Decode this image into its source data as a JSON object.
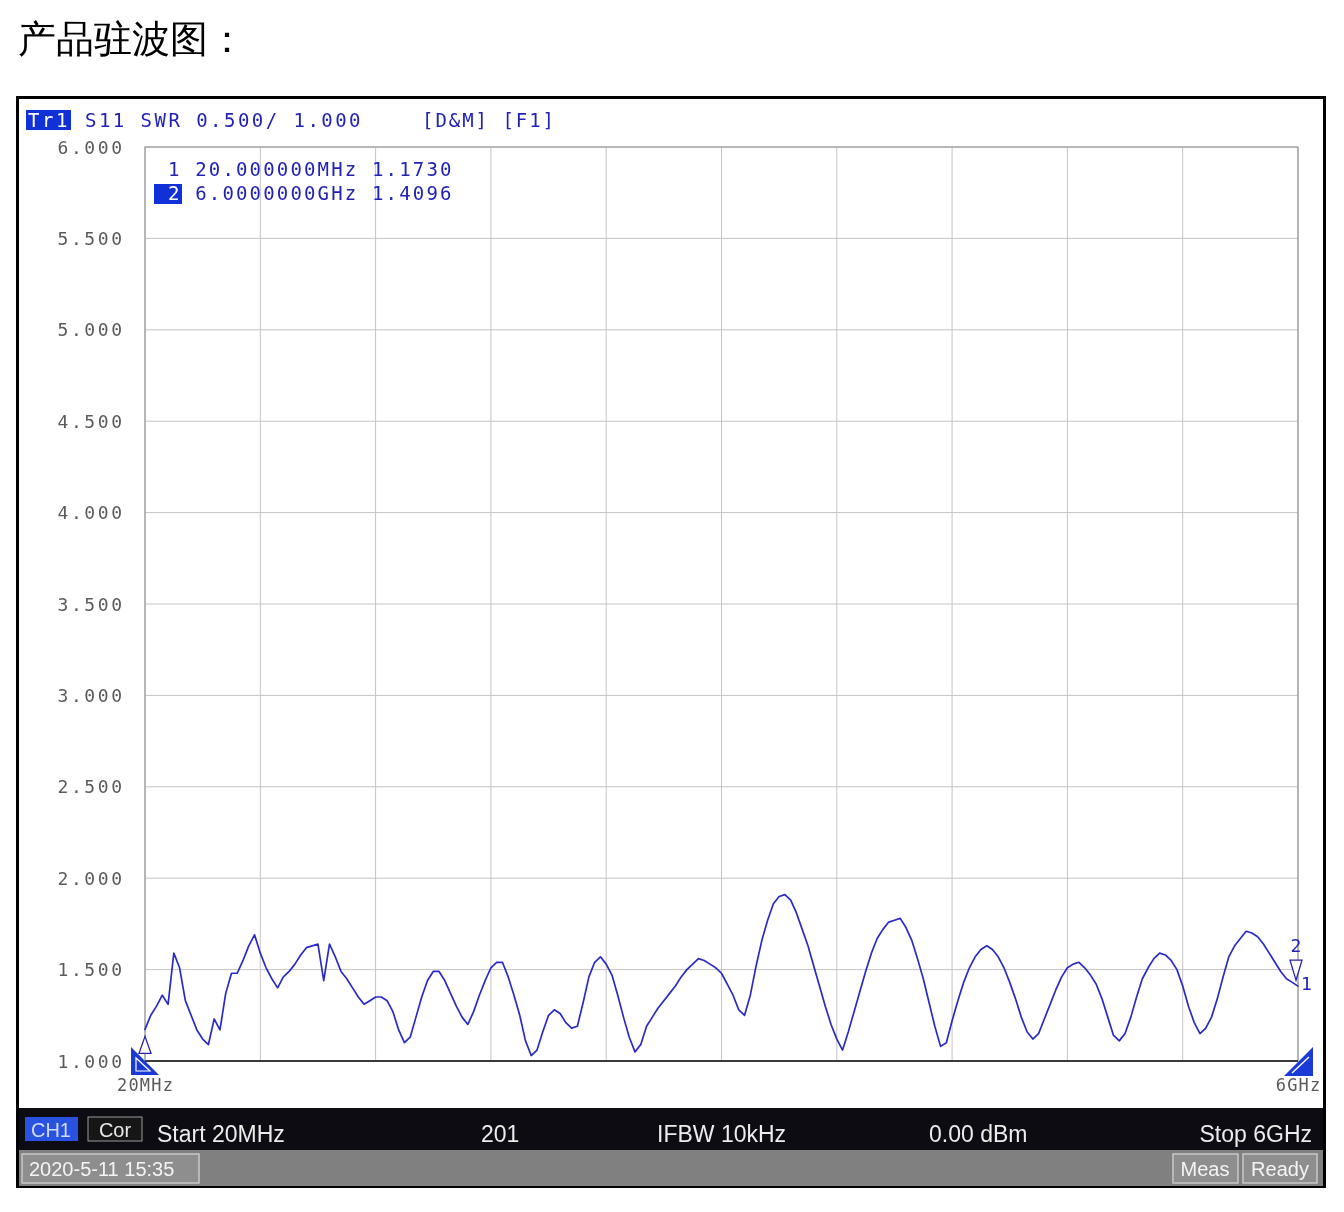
{
  "chart_data": {
    "type": "line",
    "title": "产品驻波图：",
    "categories": [
      "20MHz",
      null,
      null,
      null,
      null,
      null,
      null,
      null,
      null,
      null,
      null,
      null,
      null,
      null,
      null,
      null,
      null,
      null,
      null,
      null,
      null,
      null,
      null,
      null,
      null,
      null,
      null,
      null,
      null,
      null,
      null,
      null,
      null,
      null,
      null,
      null,
      null,
      null,
      null,
      null,
      null,
      null,
      null,
      null,
      null,
      null,
      null,
      null,
      null,
      null,
      null,
      null,
      null,
      null,
      null,
      null,
      null,
      null,
      null,
      null,
      null,
      null,
      null,
      null,
      null,
      null,
      null,
      null,
      null,
      null,
      null,
      null,
      null,
      null,
      null,
      null,
      null,
      null,
      null,
      null,
      null,
      null,
      null,
      null,
      null,
      null,
      null,
      null,
      null,
      null,
      null,
      null,
      null,
      null,
      null,
      null,
      null,
      null,
      null,
      null,
      null,
      null,
      null,
      null,
      null,
      null,
      null,
      null,
      null,
      null,
      null,
      null,
      null,
      null,
      null,
      null,
      null,
      null,
      null,
      null,
      null,
      null,
      null,
      null,
      null,
      null,
      null,
      null,
      null,
      null,
      null,
      null,
      null,
      null,
      null,
      null,
      null,
      null,
      null,
      null,
      null,
      null,
      null,
      null,
      null,
      null,
      null,
      null,
      null,
      null,
      null,
      null,
      null,
      null,
      null,
      null,
      null,
      null,
      null,
      null,
      null,
      null,
      null,
      null,
      null,
      null,
      null,
      null,
      null,
      null,
      null,
      null,
      null,
      null,
      null,
      null,
      null,
      null,
      null,
      null,
      null,
      null,
      null,
      null,
      null,
      null,
      null,
      null,
      null,
      null,
      null,
      null,
      null,
      null,
      null,
      null,
      null,
      null,
      null,
      null,
      "6GHz"
    ],
    "series": [
      {
        "color": "#2a2ac8",
        "values": [
          1.173,
          1.25,
          1.3,
          1.36,
          1.31,
          1.59,
          1.51,
          1.33,
          1.25,
          1.17,
          1.12,
          1.09,
          1.23,
          1.17,
          1.37,
          1.48,
          1.48,
          1.55,
          1.63,
          1.69,
          1.59,
          1.51,
          1.45,
          1.4,
          1.46,
          1.49,
          1.53,
          1.58,
          1.62,
          1.63,
          1.64,
          1.44,
          1.64,
          1.57,
          1.49,
          1.45,
          1.4,
          1.35,
          1.31,
          1.33,
          1.35,
          1.35,
          1.33,
          1.27,
          1.17,
          1.1,
          1.13,
          1.24,
          1.35,
          1.44,
          1.49,
          1.49,
          1.44,
          1.37,
          1.3,
          1.24,
          1.2,
          1.27,
          1.36,
          1.44,
          1.51,
          1.54,
          1.54,
          1.46,
          1.36,
          1.25,
          1.11,
          1.03,
          1.06,
          1.16,
          1.25,
          1.28,
          1.26,
          1.21,
          1.18,
          1.19,
          1.32,
          1.46,
          1.54,
          1.57,
          1.53,
          1.47,
          1.36,
          1.24,
          1.13,
          1.05,
          1.09,
          1.19,
          1.24,
          1.29,
          1.33,
          1.37,
          1.41,
          1.46,
          1.5,
          1.53,
          1.56,
          1.55,
          1.53,
          1.51,
          1.48,
          1.42,
          1.36,
          1.28,
          1.25,
          1.36,
          1.52,
          1.66,
          1.77,
          1.86,
          1.9,
          1.91,
          1.88,
          1.81,
          1.72,
          1.63,
          1.52,
          1.41,
          1.3,
          1.2,
          1.12,
          1.06,
          1.16,
          1.27,
          1.38,
          1.49,
          1.59,
          1.67,
          1.72,
          1.76,
          1.77,
          1.78,
          1.73,
          1.66,
          1.56,
          1.45,
          1.32,
          1.19,
          1.08,
          1.1,
          1.22,
          1.33,
          1.43,
          1.51,
          1.57,
          1.61,
          1.63,
          1.61,
          1.57,
          1.51,
          1.43,
          1.34,
          1.24,
          1.16,
          1.12,
          1.15,
          1.23,
          1.31,
          1.39,
          1.46,
          1.51,
          1.53,
          1.54,
          1.51,
          1.47,
          1.42,
          1.34,
          1.24,
          1.14,
          1.11,
          1.15,
          1.24,
          1.35,
          1.45,
          1.51,
          1.56,
          1.59,
          1.58,
          1.55,
          1.5,
          1.41,
          1.3,
          1.21,
          1.15,
          1.18,
          1.24,
          1.34,
          1.46,
          1.57,
          1.63,
          1.67,
          1.71,
          1.7,
          1.68,
          1.64,
          1.59,
          1.54,
          1.49,
          1.45,
          1.43,
          1.4096
        ]
      }
    ],
    "ylim": [
      1,
      6
    ],
    "yticks": [
      {
        "value": 1,
        "label": "1.000"
      },
      {
        "value": 1.5,
        "label": "1.500"
      },
      {
        "value": 2,
        "label": "2.000"
      },
      {
        "value": 2.5,
        "label": "2.500"
      },
      {
        "value": 3,
        "label": "3.000"
      },
      {
        "value": 3.5,
        "label": "3.500"
      },
      {
        "value": 4,
        "label": "4.000"
      },
      {
        "value": 4.5,
        "label": "4.500"
      },
      {
        "value": 5,
        "label": "5.000"
      },
      {
        "value": 5.5,
        "label": "5.500"
      },
      {
        "value": 6,
        "label": "6.000"
      }
    ],
    "grid": true,
    "annotations": [
      "Tr1",
      "S11 SWR 0.500/ 1.000",
      "[D&M] [F1]",
      "1 20.000000MHz 1.1730",
      "2 6.0000000GHz 1.4096",
      {
        "text": "2",
        "x": "6GHz",
        "y": 1.4096
      },
      {
        "text": "1",
        "x": "6GHz",
        "y": 1.4096
      },
      "CH1",
      "Cor",
      "Start 20MHz",
      "201",
      "IFBW 10kHz",
      "0.00 dBm",
      "Stop 6GHz",
      "2020-5-11 15:35",
      "Meas",
      "Ready"
    ]
  }
}
